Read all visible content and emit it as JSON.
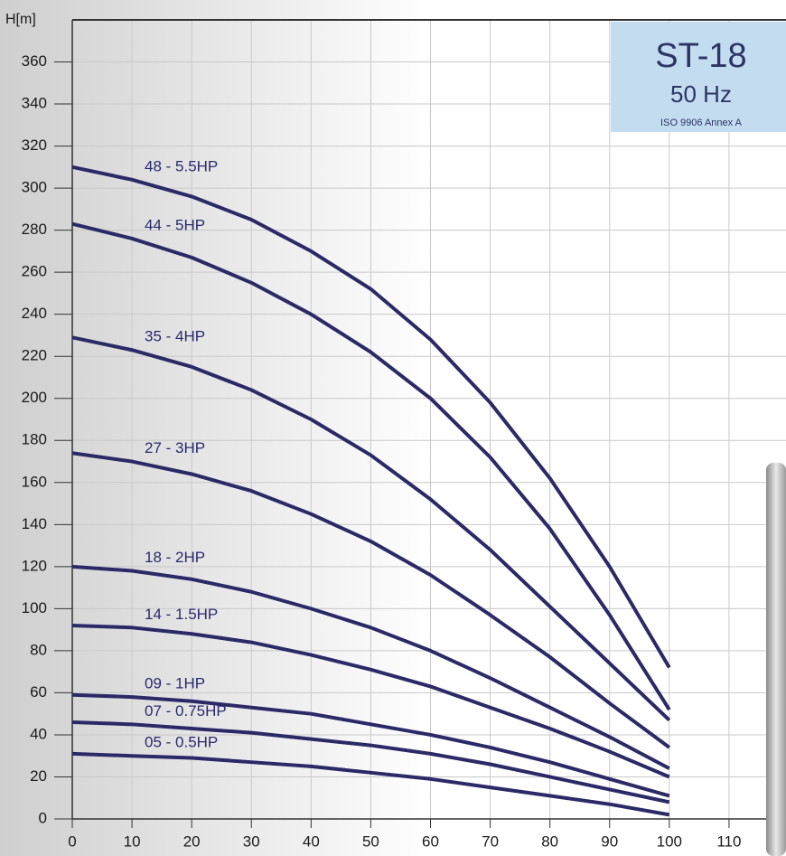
{
  "chart_data": {
    "type": "line",
    "y_label": "H[m]",
    "badge": {
      "title": "ST-18",
      "frequency": "50 Hz",
      "standard": "ISO 9906 Annex A"
    },
    "x": [
      0,
      10,
      20,
      30,
      40,
      50,
      60,
      70,
      80,
      90,
      100
    ],
    "xlim": [
      0,
      120
    ],
    "xticks": [
      0,
      10,
      20,
      30,
      40,
      50,
      60,
      70,
      80,
      90,
      100,
      110
    ],
    "ylim": [
      0,
      380
    ],
    "yticks": [
      0,
      20,
      40,
      60,
      80,
      100,
      120,
      140,
      160,
      180,
      200,
      220,
      240,
      260,
      280,
      300,
      320,
      340,
      360
    ],
    "grid": true,
    "series": [
      {
        "name": "48 - 5.5HP",
        "color": "#2b2966",
        "values": [
          310,
          304,
          296,
          285,
          270,
          252,
          228,
          198,
          162,
          120,
          72
        ]
      },
      {
        "name": "44 - 5HP",
        "color": "#2b2966",
        "values": [
          283,
          276,
          267,
          255,
          240,
          222,
          200,
          172,
          138,
          97,
          52
        ]
      },
      {
        "name": "35 - 4HP",
        "color": "#2b2966",
        "values": [
          229,
          223,
          215,
          204,
          190,
          173,
          152,
          128,
          101,
          74,
          47
        ]
      },
      {
        "name": "27 - 3HP",
        "color": "#2b2966",
        "values": [
          174,
          170,
          164,
          156,
          145,
          132,
          116,
          97,
          77,
          55,
          34
        ]
      },
      {
        "name": "18 - 2HP",
        "color": "#2b2966",
        "values": [
          120,
          118,
          114,
          108,
          100,
          91,
          80,
          67,
          53,
          39,
          24
        ]
      },
      {
        "name": "14 - 1.5HP",
        "color": "#2b2966",
        "values": [
          92,
          91,
          88,
          84,
          78,
          71,
          63,
          53,
          43,
          32,
          20
        ]
      },
      {
        "name": "09 - 1HP",
        "color": "#2b2966",
        "values": [
          59,
          58,
          56,
          53,
          50,
          45,
          40,
          34,
          27,
          19,
          11
        ]
      },
      {
        "name": "07 - 0.75HP",
        "color": "#2b2966",
        "values": [
          46,
          45,
          43,
          41,
          38,
          35,
          31,
          26,
          20,
          14,
          8
        ]
      },
      {
        "name": "05 - 0.5HP",
        "color": "#2b2966",
        "values": [
          31,
          30,
          29,
          27,
          25,
          22,
          19,
          15,
          11,
          7,
          2
        ]
      }
    ]
  }
}
